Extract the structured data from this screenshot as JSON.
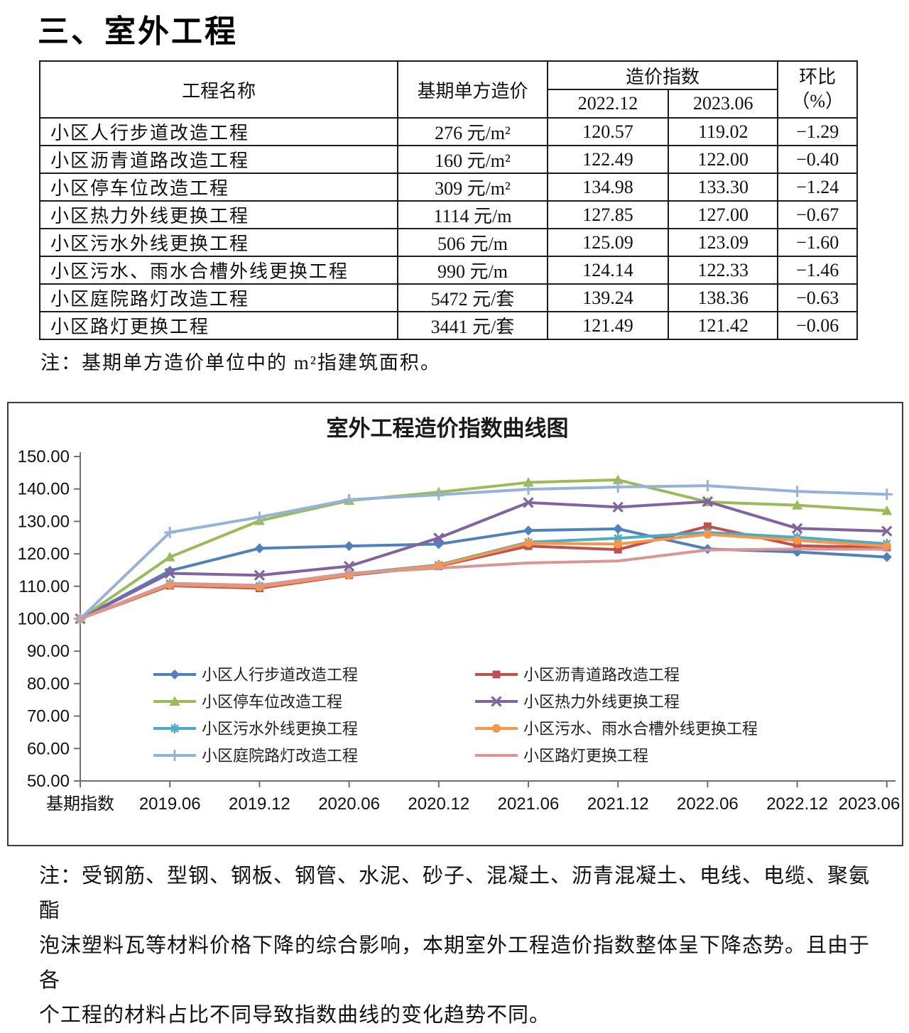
{
  "page": {
    "title": "三、室外工程"
  },
  "table": {
    "header": {
      "col_name": "工程名称",
      "col_base_cost": "基期单方造价",
      "col_index_group": "造价指数",
      "col_period_1": "2022.12",
      "col_period_2": "2023.06",
      "col_mom_line1": "环比",
      "col_mom_line2": "（%）"
    },
    "rows": [
      {
        "name": "小区人行步道改造工程",
        "base_cost": "276 元/m²",
        "index_2022_12": "120.57",
        "index_2023_06": "119.02",
        "mom": "−1.29"
      },
      {
        "name": "小区沥青道路改造工程",
        "base_cost": "160 元/m²",
        "index_2022_12": "122.49",
        "index_2023_06": "122.00",
        "mom": "−0.40"
      },
      {
        "name": "小区停车位改造工程",
        "base_cost": "309 元/m²",
        "index_2022_12": "134.98",
        "index_2023_06": "133.30",
        "mom": "−1.24"
      },
      {
        "name": "小区热力外线更换工程",
        "base_cost": "1114 元/m",
        "index_2022_12": "127.85",
        "index_2023_06": "127.00",
        "mom": "−0.67"
      },
      {
        "name": "小区污水外线更换工程",
        "base_cost": "506 元/m",
        "index_2022_12": "125.09",
        "index_2023_06": "123.09",
        "mom": "−1.60"
      },
      {
        "name": "小区污水、雨水合槽外线更换工程",
        "base_cost": "990 元/m",
        "index_2022_12": "124.14",
        "index_2023_06": "122.33",
        "mom": "−1.46"
      },
      {
        "name": "小区庭院路灯改造工程",
        "base_cost": "5472 元/套",
        "index_2022_12": "139.24",
        "index_2023_06": "138.36",
        "mom": "−0.63"
      },
      {
        "name": "小区路灯更换工程",
        "base_cost": "3441 元/套",
        "index_2022_12": "121.49",
        "index_2023_06": "121.42",
        "mom": "−0.06"
      }
    ],
    "note": "注：基期单方造价单位中的 m²指建筑面积。"
  },
  "chart_data": {
    "type": "line",
    "title": "室外工程造价指数曲线图",
    "categories": [
      "基期指数",
      "2019.06",
      "2019.12",
      "2020.06",
      "2020.12",
      "2021.06",
      "2021.12",
      "2022.06",
      "2022.12",
      "2023.06"
    ],
    "series": [
      {
        "name": "小区人行步道改造工程",
        "color": "#4F81BD",
        "marker": "diamond",
        "values": [
          100,
          114.8,
          121.7,
          122.4,
          123.0,
          127.2,
          127.7,
          121.5,
          120.57,
          119.02
        ]
      },
      {
        "name": "小区沥青道路改造工程",
        "color": "#C0504D",
        "marker": "square",
        "values": [
          100,
          110.2,
          109.4,
          113.4,
          116.2,
          122.4,
          121.3,
          128.5,
          122.49,
          122.0
        ]
      },
      {
        "name": "小区停车位改造工程",
        "color": "#9BBB59",
        "marker": "triangle",
        "values": [
          100,
          119.0,
          130.2,
          136.4,
          139.0,
          142.0,
          142.8,
          136.0,
          134.98,
          133.3
        ]
      },
      {
        "name": "小区热力外线更换工程",
        "color": "#8064A2",
        "marker": "x",
        "values": [
          100,
          114.0,
          113.4,
          116.2,
          124.9,
          135.8,
          134.4,
          136.1,
          127.85,
          127.0
        ]
      },
      {
        "name": "小区污水外线更换工程",
        "color": "#4BACC6",
        "marker": "asterisk",
        "values": [
          100,
          110.9,
          110.1,
          113.8,
          116.6,
          123.6,
          124.8,
          126.6,
          125.09,
          123.09
        ]
      },
      {
        "name": "小区污水、雨水合槽外线更换工程",
        "color": "#F79646",
        "marker": "circle",
        "values": [
          100,
          110.5,
          109.8,
          113.6,
          116.4,
          123.3,
          123.0,
          126.0,
          124.14,
          122.33
        ]
      },
      {
        "name": "小区庭院路灯改造工程",
        "color": "#95B3D7",
        "marker": "plus",
        "values": [
          100,
          126.6,
          131.3,
          136.7,
          138.2,
          139.9,
          140.6,
          141.0,
          139.24,
          138.36
        ]
      },
      {
        "name": "小区路灯更换工程",
        "color": "#D99694",
        "marker": "none",
        "values": [
          100,
          110.9,
          110.3,
          114.0,
          115.6,
          117.2,
          117.8,
          121.2,
          121.49,
          121.42
        ]
      }
    ],
    "ylim": [
      50,
      150
    ],
    "ytick_step": 10,
    "ytick_format": "0.00",
    "grid": false,
    "legend_position": "bottom-inside",
    "legend_columns": 2
  },
  "footer_note_lines": [
    "注：受钢筋、型钢、钢板、钢管、水泥、砂子、混凝土、沥青混凝土、电线、电缆、聚氨酯",
    "泡沫塑料瓦等材料价格下降的综合影响，本期室外工程造价指数整体呈下降态势。且由于各",
    "个工程的材料占比不同导致指数曲线的变化趋势不同。"
  ]
}
